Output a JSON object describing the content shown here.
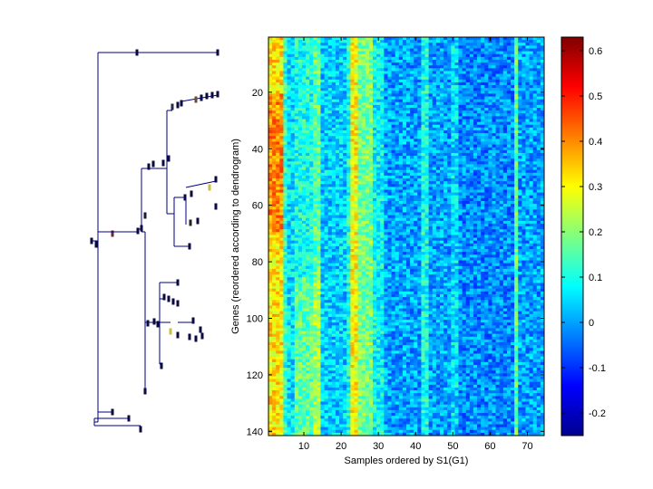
{
  "chart_data": [
    {
      "type": "heatmap",
      "title": "",
      "xlabel": "Samples ordered by S1(G1)",
      "ylabel": "Genes (reordered according to dendrogram)",
      "x_range": [
        1,
        74
      ],
      "y_range": [
        1,
        141
      ],
      "xticks": [
        10,
        20,
        30,
        40,
        50,
        60,
        70
      ],
      "yticks": [
        20,
        40,
        60,
        80,
        100,
        120,
        140
      ],
      "xtick_labels": [
        "10",
        "20",
        "30",
        "40",
        "50",
        "60",
        "70"
      ],
      "ytick_labels": [
        "20",
        "40",
        "60",
        "80",
        "100",
        "120",
        "140"
      ],
      "colormap": "jet",
      "background_value": 0.02,
      "column_profile": [
        {
          "samples": [
            1,
            4
          ],
          "value": 0.32
        },
        {
          "samples": [
            5,
            5
          ],
          "value": 0.12
        },
        {
          "samples": [
            6,
            7
          ],
          "value": 0.06
        },
        {
          "samples": [
            8,
            12
          ],
          "value": 0.1
        },
        {
          "samples": [
            13,
            14
          ],
          "value": 0.16
        },
        {
          "samples": [
            15,
            21
          ],
          "value": 0.04
        },
        {
          "samples": [
            22,
            22
          ],
          "value": 0.1
        },
        {
          "samples": [
            23,
            24
          ],
          "value": 0.3
        },
        {
          "samples": [
            25,
            28
          ],
          "value": 0.18
        },
        {
          "samples": [
            29,
            31
          ],
          "value": 0.08
        },
        {
          "samples": [
            32,
            41
          ],
          "value": 0.0
        },
        {
          "samples": [
            42,
            43
          ],
          "value": 0.1
        },
        {
          "samples": [
            44,
            49
          ],
          "value": 0.0
        },
        {
          "samples": [
            50,
            51
          ],
          "value": 0.05
        },
        {
          "samples": [
            52,
            66
          ],
          "value": -0.02
        },
        {
          "samples": [
            67,
            67
          ],
          "value": 0.16
        },
        {
          "samples": [
            68,
            74
          ],
          "value": 0.0
        }
      ]
    },
    {
      "type": "colorbar",
      "range": [
        -0.25,
        0.63
      ],
      "ticks": [
        -0.2,
        -0.1,
        0,
        0.1,
        0.2,
        0.3,
        0.4,
        0.5,
        0.6
      ],
      "tick_labels": [
        "-0.2",
        "-0.1",
        "0",
        "0.1",
        "0.2",
        "0.3",
        "0.4",
        "0.5",
        "0.6"
      ]
    },
    {
      "type": "dendrogram",
      "orientation": "left",
      "leaf_count": 141,
      "line_color": "#000080"
    }
  ]
}
